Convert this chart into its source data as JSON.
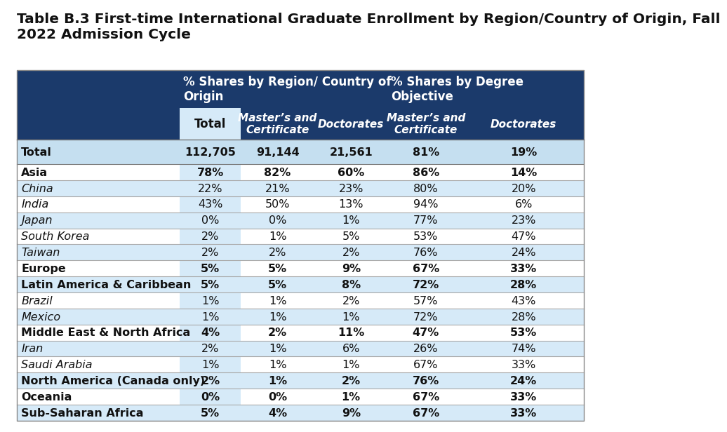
{
  "title": "Table B.3 First-time International Graduate Enrollment by Region/Country of Origin, Fall\n2022 Admission Cycle",
  "col_group1_label": "% Shares by Region/ Country of\nOrigin",
  "col_group2_label": "% Shares by Degree\nObjective",
  "col_headers": [
    "Total",
    "Master’s and\nCertificate",
    "Doctorates",
    "Master’s and\nCertificate",
    "Doctorates"
  ],
  "rows": [
    {
      "label": "Total",
      "bold": true,
      "italic": false,
      "bg": "light",
      "values": [
        "112,705",
        "91,144",
        "21,561",
        "81%",
        "19%"
      ]
    },
    {
      "label": "Asia",
      "bold": true,
      "italic": false,
      "bg": "white",
      "values": [
        "78%",
        "82%",
        "60%",
        "86%",
        "14%"
      ]
    },
    {
      "label": "China",
      "bold": false,
      "italic": true,
      "bg": "light",
      "values": [
        "22%",
        "21%",
        "23%",
        "80%",
        "20%"
      ]
    },
    {
      "label": "India",
      "bold": false,
      "italic": true,
      "bg": "white",
      "values": [
        "43%",
        "50%",
        "13%",
        "94%",
        "6%"
      ]
    },
    {
      "label": "Japan",
      "bold": false,
      "italic": true,
      "bg": "light",
      "values": [
        "0%",
        "0%",
        "1%",
        "77%",
        "23%"
      ]
    },
    {
      "label": "South Korea",
      "bold": false,
      "italic": true,
      "bg": "white",
      "values": [
        "2%",
        "1%",
        "5%",
        "53%",
        "47%"
      ]
    },
    {
      "label": "Taiwan",
      "bold": false,
      "italic": true,
      "bg": "light",
      "values": [
        "2%",
        "2%",
        "2%",
        "76%",
        "24%"
      ]
    },
    {
      "label": "Europe",
      "bold": true,
      "italic": false,
      "bg": "white",
      "values": [
        "5%",
        "5%",
        "9%",
        "67%",
        "33%"
      ]
    },
    {
      "label": "Latin America & Caribbean",
      "bold": true,
      "italic": false,
      "bg": "light",
      "values": [
        "5%",
        "5%",
        "8%",
        "72%",
        "28%"
      ]
    },
    {
      "label": "Brazil",
      "bold": false,
      "italic": true,
      "bg": "white",
      "values": [
        "1%",
        "1%",
        "2%",
        "57%",
        "43%"
      ]
    },
    {
      "label": "Mexico",
      "bold": false,
      "italic": true,
      "bg": "light",
      "values": [
        "1%",
        "1%",
        "1%",
        "72%",
        "28%"
      ]
    },
    {
      "label": "Middle East & North Africa",
      "bold": true,
      "italic": false,
      "bg": "white",
      "values": [
        "4%",
        "2%",
        "11%",
        "47%",
        "53%"
      ]
    },
    {
      "label": "Iran",
      "bold": false,
      "italic": true,
      "bg": "light",
      "values": [
        "2%",
        "1%",
        "6%",
        "26%",
        "74%"
      ]
    },
    {
      "label": "Saudi Arabia",
      "bold": false,
      "italic": true,
      "bg": "white",
      "values": [
        "1%",
        "1%",
        "1%",
        "67%",
        "33%"
      ]
    },
    {
      "label": "North America (Canada only)",
      "bold": true,
      "italic": false,
      "bg": "light",
      "values": [
        "2%",
        "1%",
        "2%",
        "76%",
        "24%"
      ]
    },
    {
      "label": "Oceania",
      "bold": true,
      "italic": false,
      "bg": "white",
      "values": [
        "0%",
        "0%",
        "1%",
        "67%",
        "33%"
      ]
    },
    {
      "label": "Sub-Saharan Africa",
      "bold": true,
      "italic": false,
      "bg": "light",
      "values": [
        "5%",
        "4%",
        "9%",
        "67%",
        "33%"
      ]
    }
  ],
  "dark_blue": "#1b3a6b",
  "light_blue": "#d6eaf8",
  "total_row_blue": "#c5dff0",
  "white": "#ffffff",
  "header_text_color": "#ffffff",
  "dark_text": "#111111",
  "title_fontsize": 14.5,
  "cell_fontsize": 11.5
}
